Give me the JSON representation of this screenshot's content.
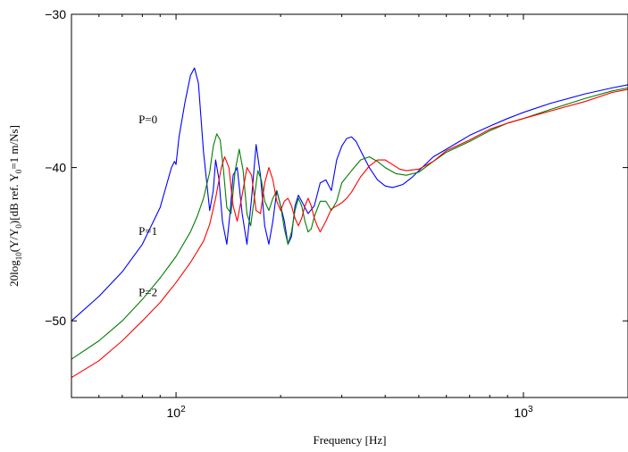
{
  "chart_data": {
    "type": "line",
    "title": "",
    "xlabel": "Frequency [Hz]",
    "ylabel_parts": [
      "20log",
      "10",
      "(Y/Y",
      "0",
      ")[dB ref. Y",
      "0",
      "=1 m/Ns]"
    ],
    "x_scale": "log",
    "xlim": [
      50,
      2000
    ],
    "ylim": [
      -55,
      -30
    ],
    "x_ticks": [
      {
        "value": 100,
        "base": "10",
        "exp": "2"
      },
      {
        "value": 1000,
        "base": "10",
        "exp": "3"
      }
    ],
    "y_ticks": [
      {
        "value": -30,
        "label": "−30"
      },
      {
        "value": -40,
        "label": "−40"
      },
      {
        "value": -50,
        "label": "−50"
      }
    ],
    "grid": false,
    "legend": "none",
    "annotations": [
      {
        "text": "P=0",
        "x": 83,
        "y": -37.1
      },
      {
        "text": "P=1",
        "x": 83,
        "y": -44.4
      },
      {
        "text": "P=2",
        "x": 83,
        "y": -48.4
      }
    ],
    "series": [
      {
        "color": "#0000ff",
        "x": [
          50,
          60,
          70,
          80,
          90,
          97,
          98,
          99,
          100,
          102,
          106,
          110,
          113,
          116,
          120,
          125,
          128,
          130,
          133,
          136,
          140,
          143,
          146,
          150,
          155,
          160,
          165,
          170,
          175,
          180,
          185,
          190,
          195,
          200,
          205,
          210,
          215,
          220,
          225,
          230,
          240,
          250,
          260,
          270,
          280,
          290,
          300,
          310,
          320,
          330,
          340,
          360,
          380,
          400,
          420,
          450,
          480,
          500,
          550,
          600,
          700,
          800,
          900,
          1000,
          1200,
          1500,
          1800,
          2000
        ],
        "y": [
          -50.0,
          -48.4,
          -46.8,
          -45.0,
          -42.6,
          -40.0,
          -39.8,
          -39.6,
          -39.8,
          -38.0,
          -35.8,
          -34.0,
          -33.5,
          -34.5,
          -39.0,
          -42.8,
          -41.5,
          -39.5,
          -40.8,
          -43.5,
          -45.0,
          -43.0,
          -40.5,
          -40.0,
          -43.0,
          -45.0,
          -42.0,
          -38.5,
          -40.5,
          -43.8,
          -45.0,
          -43.5,
          -41.5,
          -42.5,
          -43.5,
          -45.0,
          -44.5,
          -42.5,
          -41.8,
          -42.2,
          -43.0,
          -42.5,
          -41.0,
          -40.8,
          -41.5,
          -39.5,
          -38.6,
          -38.1,
          -38.0,
          -38.3,
          -38.9,
          -40.0,
          -40.8,
          -41.2,
          -41.3,
          -41.1,
          -40.6,
          -40.2,
          -39.3,
          -38.8,
          -37.9,
          -37.3,
          -36.8,
          -36.4,
          -35.8,
          -35.2,
          -34.8,
          -34.6
        ]
      },
      {
        "color": "#007f00",
        "x": [
          50,
          60,
          70,
          80,
          90,
          100,
          110,
          115,
          120,
          125,
          128,
          131,
          134,
          137,
          140,
          144,
          148,
          152,
          156,
          160,
          164,
          168,
          172,
          176,
          180,
          185,
          190,
          195,
          200,
          205,
          210,
          215,
          220,
          225,
          230,
          235,
          240,
          245,
          250,
          260,
          270,
          280,
          290,
          300,
          320,
          340,
          360,
          380,
          400,
          430,
          460,
          500,
          550,
          600,
          700,
          800,
          900,
          1000,
          1200,
          1500,
          1800,
          2000
        ],
        "y": [
          -52.5,
          -51.3,
          -50.0,
          -48.6,
          -47.2,
          -45.8,
          -44.2,
          -43.2,
          -42.0,
          -40.3,
          -38.6,
          -37.8,
          -38.2,
          -40.2,
          -42.6,
          -43.0,
          -40.2,
          -38.8,
          -40.2,
          -43.0,
          -43.8,
          -42.0,
          -40.2,
          -40.8,
          -42.2,
          -42.8,
          -42.0,
          -41.5,
          -42.5,
          -44.0,
          -45.0,
          -44.2,
          -42.8,
          -42.0,
          -42.5,
          -43.5,
          -44.2,
          -44.0,
          -43.2,
          -42.2,
          -42.2,
          -42.8,
          -42.2,
          -41.0,
          -40.2,
          -39.5,
          -39.3,
          -39.6,
          -40.0,
          -40.4,
          -40.5,
          -40.3,
          -39.6,
          -39.0,
          -38.3,
          -37.6,
          -37.1,
          -36.8,
          -36.2,
          -35.5,
          -35.0,
          -34.8
        ]
      },
      {
        "color": "#ff0000",
        "x": [
          50,
          60,
          70,
          80,
          90,
          100,
          110,
          120,
          125,
          130,
          135,
          138,
          142,
          146,
          150,
          155,
          160,
          165,
          170,
          175,
          180,
          185,
          190,
          195,
          200,
          205,
          210,
          215,
          220,
          225,
          230,
          235,
          240,
          245,
          250,
          255,
          260,
          270,
          280,
          290,
          300,
          310,
          320,
          340,
          360,
          380,
          400,
          420,
          440,
          460,
          500,
          550,
          600,
          700,
          800,
          900,
          1000,
          1200,
          1500,
          1800,
          2000
        ],
        "y": [
          -53.7,
          -52.6,
          -51.3,
          -50.0,
          -48.8,
          -47.5,
          -46.2,
          -44.8,
          -43.7,
          -42.0,
          -40.0,
          -39.3,
          -40.0,
          -42.5,
          -43.5,
          -41.8,
          -40.0,
          -40.5,
          -42.8,
          -43.0,
          -41.0,
          -40.0,
          -40.8,
          -42.2,
          -42.8,
          -42.2,
          -42.0,
          -42.5,
          -43.3,
          -43.8,
          -43.3,
          -42.5,
          -42.0,
          -42.5,
          -43.3,
          -43.8,
          -44.2,
          -43.5,
          -42.7,
          -42.5,
          -42.3,
          -42.0,
          -41.6,
          -40.6,
          -39.9,
          -39.5,
          -39.5,
          -39.8,
          -40.1,
          -40.2,
          -40.1,
          -39.6,
          -38.9,
          -38.2,
          -37.5,
          -37.1,
          -36.8,
          -36.3,
          -35.7,
          -35.1,
          -34.9
        ]
      }
    ]
  }
}
